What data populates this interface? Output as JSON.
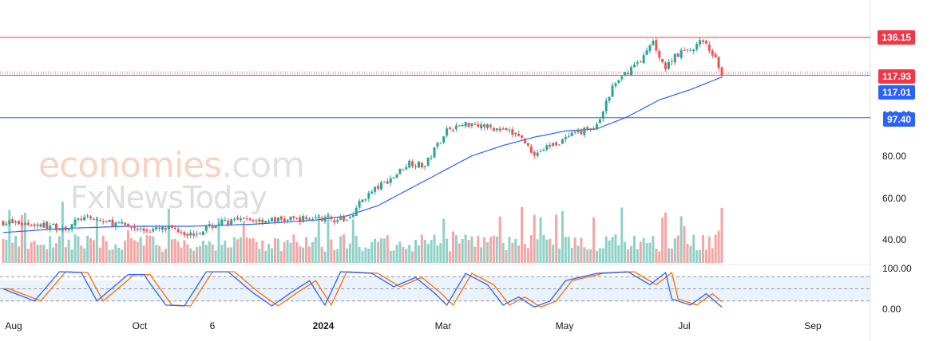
{
  "watermark": {
    "line1_a": "economies",
    "line1_b": ".com",
    "line2": "FxNewsToday"
  },
  "price_labels": [
    {
      "value": "136.15",
      "color": "#f23645"
    },
    {
      "value": "117.93",
      "color": "#f23645"
    },
    {
      "value": "117.01",
      "color": "#2962ff"
    },
    {
      "value": "97.40",
      "color": "#2962ff"
    }
  ],
  "chart_data": {
    "type": "candlestick",
    "y_axis": {
      "ticks": [
        "40.00",
        "60.00",
        "80.00",
        "100.00"
      ],
      "range": [
        30,
        142
      ]
    },
    "oscillator_axis": {
      "ticks": [
        "100.00",
        "0.00"
      ],
      "range": [
        0,
        100
      ],
      "bands": [
        80,
        50,
        20
      ]
    },
    "x_axis": {
      "ticks": [
        "Aug",
        "Oct",
        "6",
        "2024",
        "Mar",
        "May",
        "Jul",
        "Sep"
      ]
    },
    "horizontal_levels": [
      {
        "value": 136.15,
        "color": "#f23645"
      },
      {
        "value": 117.93,
        "color": "#f23645"
      },
      {
        "value": 97.4,
        "color": "#2962ff"
      }
    ],
    "moving_average_last": 117.01,
    "price_keypoints": [
      [
        0,
        47
      ],
      [
        10,
        46
      ],
      [
        20,
        44
      ],
      [
        25,
        49
      ],
      [
        30,
        48
      ],
      [
        40,
        45
      ],
      [
        45,
        43
      ],
      [
        55,
        44
      ],
      [
        60,
        41
      ],
      [
        70,
        47
      ],
      [
        80,
        48
      ],
      [
        90,
        48
      ],
      [
        100,
        49
      ],
      [
        110,
        48
      ],
      [
        115,
        58
      ],
      [
        120,
        64
      ],
      [
        125,
        69
      ],
      [
        130,
        76
      ],
      [
        135,
        74
      ],
      [
        138,
        82
      ],
      [
        142,
        92
      ],
      [
        145,
        93
      ],
      [
        150,
        95
      ],
      [
        160,
        91
      ],
      [
        165,
        89
      ],
      [
        170,
        80
      ],
      [
        175,
        84
      ],
      [
        180,
        87
      ],
      [
        185,
        91
      ],
      [
        190,
        93
      ],
      [
        195,
        112
      ],
      [
        200,
        120
      ],
      [
        205,
        127
      ],
      [
        208,
        134
      ],
      [
        212,
        121
      ],
      [
        215,
        128
      ],
      [
        220,
        130
      ],
      [
        223,
        134
      ],
      [
        226,
        131
      ],
      [
        228,
        125
      ],
      [
        230,
        118
      ]
    ],
    "ma_keypoints": [
      [
        0,
        42
      ],
      [
        20,
        44
      ],
      [
        40,
        45
      ],
      [
        60,
        45
      ],
      [
        80,
        46
      ],
      [
        100,
        48
      ],
      [
        110,
        50
      ],
      [
        120,
        55
      ],
      [
        130,
        63
      ],
      [
        140,
        71
      ],
      [
        150,
        79
      ],
      [
        160,
        84
      ],
      [
        170,
        88
      ],
      [
        180,
        91
      ],
      [
        190,
        92
      ],
      [
        200,
        98
      ],
      [
        210,
        106
      ],
      [
        220,
        111
      ],
      [
        230,
        117
      ]
    ],
    "stoch_keypoints": [
      [
        0,
        50
      ],
      [
        10,
        20
      ],
      [
        18,
        92
      ],
      [
        25,
        90
      ],
      [
        30,
        20
      ],
      [
        40,
        85
      ],
      [
        45,
        85
      ],
      [
        52,
        10
      ],
      [
        58,
        8
      ],
      [
        65,
        92
      ],
      [
        72,
        92
      ],
      [
        80,
        40
      ],
      [
        86,
        8
      ],
      [
        92,
        40
      ],
      [
        98,
        70
      ],
      [
        103,
        10
      ],
      [
        108,
        92
      ],
      [
        118,
        88
      ],
      [
        125,
        55
      ],
      [
        132,
        78
      ],
      [
        138,
        40
      ],
      [
        142,
        10
      ],
      [
        148,
        88
      ],
      [
        155,
        60
      ],
      [
        160,
        10
      ],
      [
        165,
        30
      ],
      [
        170,
        5
      ],
      [
        175,
        20
      ],
      [
        180,
        70
      ],
      [
        190,
        88
      ],
      [
        200,
        92
      ],
      [
        207,
        60
      ],
      [
        212,
        90
      ],
      [
        214,
        25
      ],
      [
        220,
        10
      ],
      [
        225,
        38
      ],
      [
        230,
        5
      ]
    ]
  }
}
